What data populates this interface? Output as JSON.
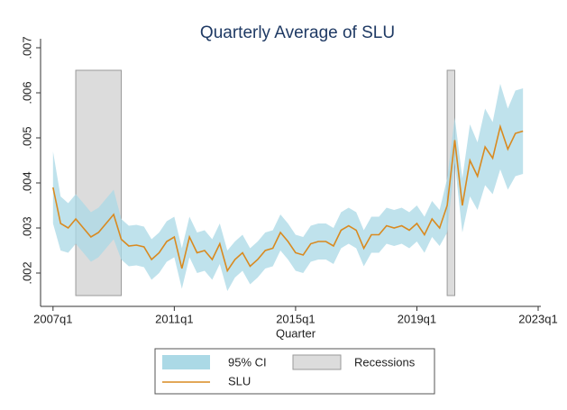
{
  "chart_data": {
    "type": "line",
    "title": "Quarterly Average of SLU",
    "x_label": "Quarter",
    "x": [
      "2007q1",
      "2007q2",
      "2007q3",
      "2007q4",
      "2008q1",
      "2008q2",
      "2008q3",
      "2008q4",
      "2009q1",
      "2009q2",
      "2009q3",
      "2009q4",
      "2010q1",
      "2010q2",
      "2010q3",
      "2010q4",
      "2011q1",
      "2011q2",
      "2011q3",
      "2011q4",
      "2012q1",
      "2012q2",
      "2012q3",
      "2012q4",
      "2013q1",
      "2013q2",
      "2013q3",
      "2013q4",
      "2014q1",
      "2014q2",
      "2014q3",
      "2014q4",
      "2015q1",
      "2015q2",
      "2015q3",
      "2015q4",
      "2016q1",
      "2016q2",
      "2016q3",
      "2016q4",
      "2017q1",
      "2017q2",
      "2017q3",
      "2017q4",
      "2018q1",
      "2018q2",
      "2018q3",
      "2018q4",
      "2019q1",
      "2019q2",
      "2019q3",
      "2019q4",
      "2020q1",
      "2020q2",
      "2020q3",
      "2020q4",
      "2021q1",
      "2021q2",
      "2021q3",
      "2021q4",
      "2022q1",
      "2022q2",
      "2022q3"
    ],
    "series": [
      {
        "name": "SLU",
        "color": "#d98a20",
        "values": [
          0.0039,
          0.0031,
          0.003,
          0.0032,
          0.003,
          0.0028,
          0.0029,
          0.0031,
          0.0033,
          0.00275,
          0.0026,
          0.00262,
          0.00258,
          0.0023,
          0.00245,
          0.0027,
          0.0028,
          0.0021,
          0.0028,
          0.00245,
          0.0025,
          0.0023,
          0.00265,
          0.00205,
          0.0023,
          0.00245,
          0.00215,
          0.0023,
          0.0025,
          0.00255,
          0.0029,
          0.0027,
          0.00245,
          0.0024,
          0.00265,
          0.0027,
          0.0027,
          0.0026,
          0.00295,
          0.00305,
          0.00295,
          0.00255,
          0.00285,
          0.00285,
          0.00305,
          0.003,
          0.00305,
          0.00295,
          0.0031,
          0.00285,
          0.0032,
          0.003,
          0.0035,
          0.00495,
          0.0035,
          0.0045,
          0.00415,
          0.0048,
          0.00455,
          0.00525,
          0.00475,
          0.0051,
          0.00515
        ]
      }
    ],
    "ci": {
      "name": "95% CI",
      "color": "#abd9e6",
      "lower": [
        0.0031,
        0.0025,
        0.00245,
        0.00265,
        0.00245,
        0.00225,
        0.00235,
        0.00255,
        0.00275,
        0.0023,
        0.00215,
        0.00217,
        0.00213,
        0.00185,
        0.002,
        0.00225,
        0.00235,
        0.00165,
        0.00235,
        0.002,
        0.00205,
        0.00185,
        0.0022,
        0.0016,
        0.0019,
        0.00205,
        0.00175,
        0.0019,
        0.0021,
        0.00215,
        0.0025,
        0.0023,
        0.00205,
        0.002,
        0.00225,
        0.0023,
        0.0023,
        0.0022,
        0.00255,
        0.00265,
        0.00255,
        0.00215,
        0.00245,
        0.00245,
        0.00265,
        0.0026,
        0.00265,
        0.00255,
        0.0027,
        0.00245,
        0.0028,
        0.0026,
        0.0029,
        0.00445,
        0.0029,
        0.0037,
        0.0034,
        0.00395,
        0.00375,
        0.0043,
        0.00385,
        0.00415,
        0.0042
      ],
      "upper": [
        0.0047,
        0.0037,
        0.00355,
        0.00375,
        0.00355,
        0.00335,
        0.00345,
        0.00365,
        0.00385,
        0.0032,
        0.00305,
        0.00307,
        0.00303,
        0.00275,
        0.0029,
        0.00315,
        0.00325,
        0.00255,
        0.00325,
        0.0029,
        0.00295,
        0.00275,
        0.0031,
        0.0025,
        0.0027,
        0.00285,
        0.00255,
        0.0027,
        0.0029,
        0.00295,
        0.0033,
        0.0031,
        0.00285,
        0.0028,
        0.00305,
        0.0031,
        0.0031,
        0.003,
        0.00335,
        0.00345,
        0.00335,
        0.00295,
        0.00325,
        0.00325,
        0.00345,
        0.0034,
        0.00345,
        0.00335,
        0.0035,
        0.00325,
        0.0036,
        0.0034,
        0.0041,
        0.00545,
        0.0041,
        0.0053,
        0.0049,
        0.00565,
        0.00535,
        0.0062,
        0.00565,
        0.00605,
        0.0061
      ]
    },
    "recessions": {
      "name": "Recessions",
      "color": "#dcdcdc",
      "periods": [
        [
          "2007q4",
          "2009q2"
        ],
        [
          "2020q1",
          "2020q2"
        ]
      ],
      "range": [
        0.0015,
        0.0065
      ]
    },
    "xlim": [
      "2006q3",
      "2023q1"
    ],
    "xticks": [
      "2007q1",
      "2011q1",
      "2015q1",
      "2019q1",
      "2023q1"
    ],
    "ylim": [
      0.00126,
      0.0072
    ],
    "yticks": [
      {
        "value": 0.002,
        "label": ".002"
      },
      {
        "value": 0.003,
        "label": ".003"
      },
      {
        "value": 0.004,
        "label": ".004"
      },
      {
        "value": 0.005,
        "label": ".005"
      },
      {
        "value": 0.006,
        "label": ".006"
      },
      {
        "value": 0.007,
        "label": ".007"
      }
    ],
    "grid": false,
    "legend": "bottom"
  }
}
